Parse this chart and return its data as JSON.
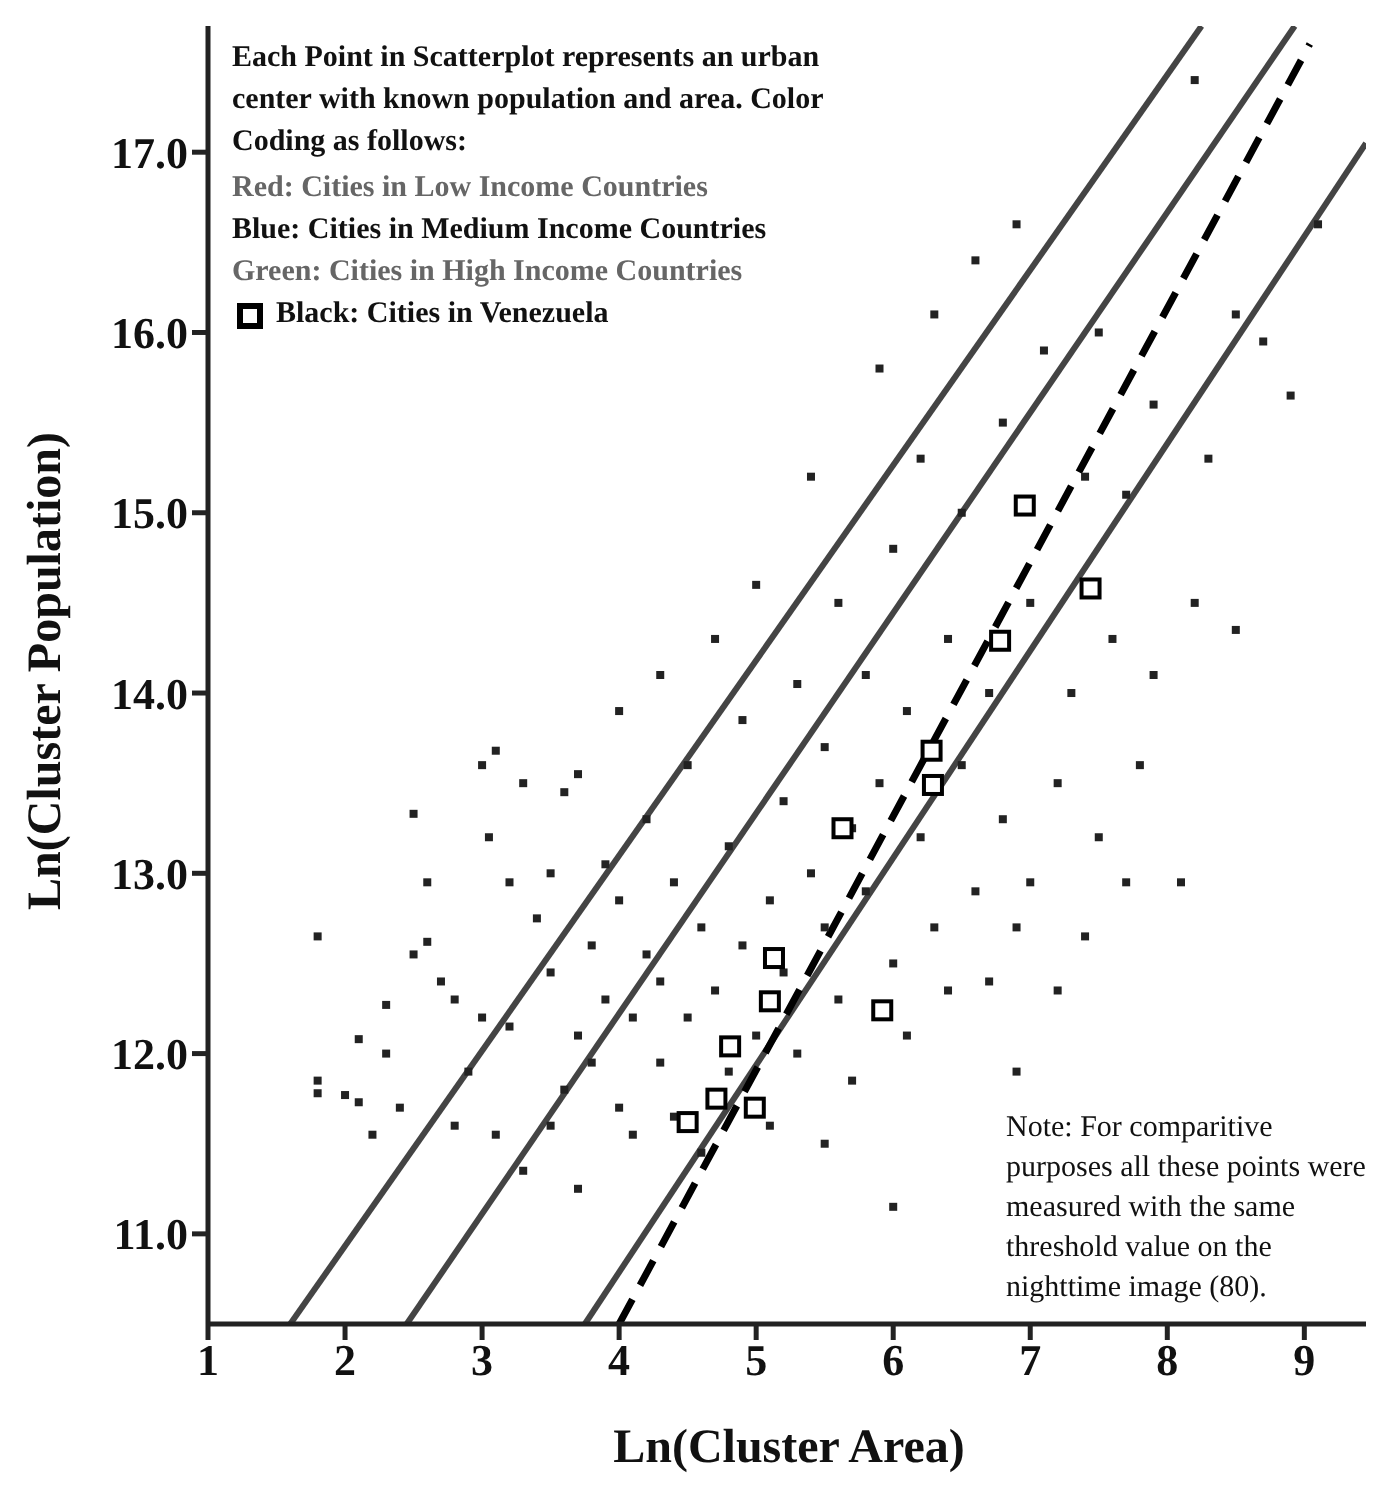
{
  "chart_data": {
    "type": "scatter",
    "xlabel": "Ln(Cluster Area)",
    "ylabel": "Ln(Cluster Population)",
    "xlim": [
      1,
      9.45
    ],
    "ylim": [
      10.5,
      17.7
    ],
    "xticks": [
      1,
      2,
      3,
      4,
      5,
      6,
      7,
      8,
      9
    ],
    "yticks": [
      {
        "value": 11,
        "label": "11.0"
      },
      {
        "value": 12,
        "label": "12.0"
      },
      {
        "value": 13,
        "label": "13.0"
      },
      {
        "value": 14,
        "label": "14.0"
      },
      {
        "value": 15,
        "label": "15.0"
      },
      {
        "value": 16,
        "label": "16.0"
      },
      {
        "value": 17,
        "label": "17.0"
      }
    ],
    "grid": false,
    "legend": "top left",
    "marker": "square",
    "annotations": [
      "Each Point in Scatterplot represents an urban center with known population and area. Color Coding as follows:",
      "Red: Cities in Low Income Countries",
      "Blue: Cities in Medium Income Countries",
      "Green: Cities in High Income Countries",
      "Note: For comparitive purposes all these points were measured with the same threshold value on the nighttime image (80)."
    ],
    "series": [
      {
        "color": "#222222",
        "x": [
          1.8,
          1.8,
          1.8,
          2.0,
          2.1,
          2.1,
          2.2,
          2.3,
          2.3,
          2.4,
          2.5,
          2.5,
          2.6,
          2.6,
          2.7,
          2.8,
          2.8,
          2.9,
          3.0,
          3.0,
          3.05,
          3.1,
          3.1,
          3.2,
          3.2,
          3.3,
          3.3,
          3.4,
          3.5,
          3.5,
          3.5,
          3.6,
          3.6,
          3.7,
          3.7,
          3.7,
          3.8,
          3.8,
          3.9,
          3.9,
          4.0,
          4.0,
          4.0,
          4.1,
          4.1,
          4.2,
          4.2,
          4.3,
          4.3,
          4.3,
          4.4,
          4.4,
          4.5,
          4.5,
          4.6,
          4.6,
          4.7,
          4.7,
          4.8,
          4.8,
          4.9,
          4.9,
          5.0,
          5.0,
          5.1,
          5.1,
          5.2,
          5.2,
          5.3,
          5.3,
          5.4,
          5.4,
          5.5,
          5.5,
          5.5,
          5.6,
          5.6,
          5.7,
          5.7,
          5.8,
          5.8,
          5.9,
          5.9,
          6.0,
          6.0,
          6.0,
          6.1,
          6.1,
          6.2,
          6.2,
          6.3,
          6.3,
          6.4,
          6.4,
          6.5,
          6.5,
          6.6,
          6.6,
          6.7,
          6.7,
          6.8,
          6.8,
          6.9,
          6.9,
          7.0,
          7.0,
          7.1,
          7.2,
          7.2,
          7.3,
          7.4,
          7.4,
          7.5,
          7.5,
          7.6,
          7.7,
          7.7,
          7.8,
          7.9,
          7.9,
          8.1,
          8.2,
          8.2,
          8.3,
          8.5,
          8.5,
          8.7,
          8.9,
          9.1,
          6.9
        ],
        "values": [
          12.65,
          11.85,
          11.78,
          11.77,
          11.73,
          12.08,
          11.55,
          12.27,
          12.0,
          11.7,
          13.33,
          12.55,
          12.95,
          12.62,
          12.4,
          12.3,
          11.6,
          11.9,
          13.6,
          12.2,
          13.2,
          13.68,
          11.55,
          12.15,
          12.95,
          13.5,
          11.35,
          12.75,
          12.45,
          11.6,
          13.0,
          13.45,
          11.8,
          12.1,
          11.25,
          13.55,
          12.6,
          11.95,
          12.3,
          13.05,
          11.7,
          12.85,
          13.9,
          12.2,
          11.55,
          13.3,
          12.55,
          14.1,
          11.95,
          12.4,
          12.95,
          11.65,
          13.6,
          12.2,
          12.7,
          11.45,
          14.3,
          12.35,
          13.15,
          11.9,
          12.6,
          13.85,
          12.1,
          14.6,
          12.85,
          11.6,
          13.4,
          12.45,
          14.05,
          12.0,
          13.0,
          15.2,
          12.7,
          13.7,
          11.5,
          14.5,
          12.3,
          13.25,
          11.85,
          12.9,
          14.1,
          13.5,
          15.8,
          12.5,
          14.8,
          11.15,
          13.9,
          12.1,
          15.3,
          13.2,
          12.7,
          16.1,
          14.3,
          12.35,
          13.6,
          15.0,
          12.9,
          16.4,
          14.0,
          12.4,
          15.5,
          13.3,
          12.7,
          16.6,
          14.5,
          12.95,
          15.9,
          13.5,
          12.35,
          14.0,
          15.2,
          12.65,
          16.0,
          13.2,
          14.3,
          15.1,
          12.95,
          13.6,
          14.1,
          15.6,
          12.95,
          14.5,
          17.4,
          15.3,
          14.35,
          16.1,
          15.95,
          15.65,
          16.6,
          11.9
        ]
      },
      {
        "name": "Black: Cities in Venezuela",
        "color": "#000000",
        "x": [
          6.96,
          7.44,
          6.78,
          6.28,
          6.29,
          5.63,
          5.13,
          5.1,
          5.92,
          4.81,
          4.99,
          4.5,
          4.71
        ],
        "values": [
          15.04,
          14.58,
          14.29,
          13.68,
          13.49,
          13.25,
          12.53,
          12.29,
          12.24,
          12.04,
          11.7,
          11.62,
          11.75
        ]
      },
      {
        "type": "line",
        "marker": "none",
        "color": "#444444",
        "line_style": "solid",
        "x": [
          1.6,
          8.25
        ],
        "values": [
          10.5,
          17.7
        ]
      },
      {
        "type": "line",
        "marker": "none",
        "color": "#444444",
        "line_style": "solid",
        "x": [
          2.45,
          8.93
        ],
        "values": [
          10.5,
          17.7
        ]
      },
      {
        "type": "line",
        "marker": "none",
        "color": "#444444",
        "line_style": "solid",
        "x": [
          3.75,
          9.45
        ],
        "values": [
          10.5,
          17.05
        ]
      },
      {
        "type": "line",
        "marker": "none",
        "color": "#000000",
        "line_style": "dashed",
        "x": [
          4.0,
          9.04
        ],
        "values": [
          10.5,
          17.6
        ]
      }
    ]
  }
}
